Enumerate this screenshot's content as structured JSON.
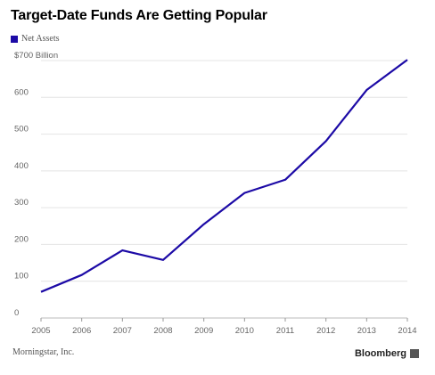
{
  "header": {
    "title": "Target-Date Funds Are Getting Popular"
  },
  "legend": {
    "label": "Net Assets",
    "color": "#1c0aa6"
  },
  "footer": {
    "source": "Morningstar, Inc.",
    "brand": "Bloomberg",
    "brand_icon": "bloomberg-logo-icon"
  },
  "chart_data": {
    "type": "line",
    "title": "Target-Date Funds Are Getting Popular",
    "xlabel": "",
    "ylabel": "",
    "x": [
      "2005",
      "2006",
      "2007",
      "2008",
      "2009",
      "2010",
      "2011",
      "2012",
      "2013",
      "2014"
    ],
    "series": [
      {
        "name": "Net Assets",
        "color": "#1c0aa6",
        "values": [
          71,
          117,
          184,
          158,
          255,
          340,
          376,
          481,
          620,
          702
        ]
      }
    ],
    "ylim": [
      0,
      700
    ],
    "yticks": [
      0,
      100,
      200,
      300,
      400,
      500,
      600,
      700
    ],
    "ytick_labels": [
      "0",
      "100",
      "200",
      "300",
      "400",
      "500",
      "600",
      "$700 Billion"
    ],
    "grid": true,
    "legend_position": "top-left"
  }
}
